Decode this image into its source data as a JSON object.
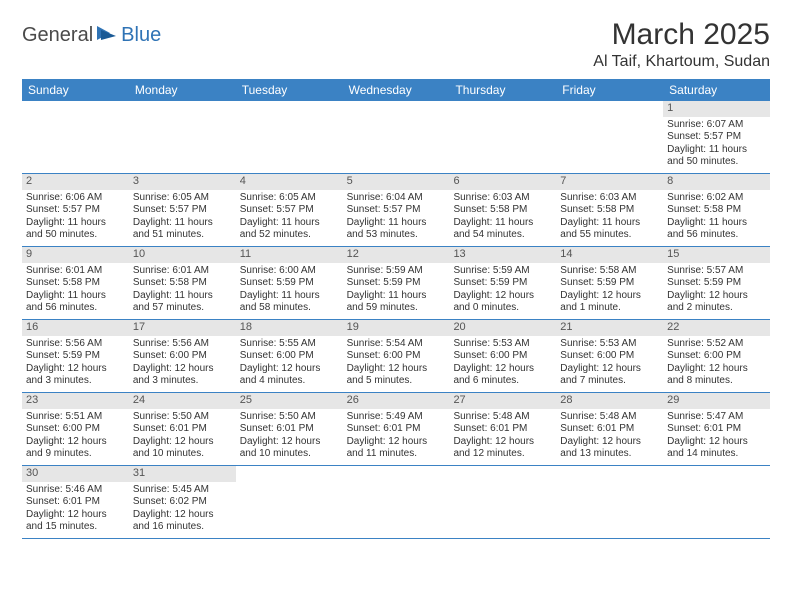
{
  "brand": {
    "part1": "General",
    "part2": "Blue"
  },
  "title": "March 2025",
  "location": "Al Taif, Khartoum, Sudan",
  "dayNames": [
    "Sunday",
    "Monday",
    "Tuesday",
    "Wednesday",
    "Thursday",
    "Friday",
    "Saturday"
  ],
  "colors": {
    "headerBlue": "#3b82c4",
    "cellHeaderGray": "#e6e6e6",
    "logoBlue": "#2f73b5",
    "logoGray": "#4a4a4a",
    "text": "#333333"
  },
  "weeks": [
    [
      null,
      null,
      null,
      null,
      null,
      null,
      {
        "d": "1",
        "sr": "6:07 AM",
        "ss": "5:57 PM",
        "dl": "11 hours and 50 minutes."
      }
    ],
    [
      {
        "d": "2",
        "sr": "6:06 AM",
        "ss": "5:57 PM",
        "dl": "11 hours and 50 minutes."
      },
      {
        "d": "3",
        "sr": "6:05 AM",
        "ss": "5:57 PM",
        "dl": "11 hours and 51 minutes."
      },
      {
        "d": "4",
        "sr": "6:05 AM",
        "ss": "5:57 PM",
        "dl": "11 hours and 52 minutes."
      },
      {
        "d": "5",
        "sr": "6:04 AM",
        "ss": "5:57 PM",
        "dl": "11 hours and 53 minutes."
      },
      {
        "d": "6",
        "sr": "6:03 AM",
        "ss": "5:58 PM",
        "dl": "11 hours and 54 minutes."
      },
      {
        "d": "7",
        "sr": "6:03 AM",
        "ss": "5:58 PM",
        "dl": "11 hours and 55 minutes."
      },
      {
        "d": "8",
        "sr": "6:02 AM",
        "ss": "5:58 PM",
        "dl": "11 hours and 56 minutes."
      }
    ],
    [
      {
        "d": "9",
        "sr": "6:01 AM",
        "ss": "5:58 PM",
        "dl": "11 hours and 56 minutes."
      },
      {
        "d": "10",
        "sr": "6:01 AM",
        "ss": "5:58 PM",
        "dl": "11 hours and 57 minutes."
      },
      {
        "d": "11",
        "sr": "6:00 AM",
        "ss": "5:59 PM",
        "dl": "11 hours and 58 minutes."
      },
      {
        "d": "12",
        "sr": "5:59 AM",
        "ss": "5:59 PM",
        "dl": "11 hours and 59 minutes."
      },
      {
        "d": "13",
        "sr": "5:59 AM",
        "ss": "5:59 PM",
        "dl": "12 hours and 0 minutes."
      },
      {
        "d": "14",
        "sr": "5:58 AM",
        "ss": "5:59 PM",
        "dl": "12 hours and 1 minute."
      },
      {
        "d": "15",
        "sr": "5:57 AM",
        "ss": "5:59 PM",
        "dl": "12 hours and 2 minutes."
      }
    ],
    [
      {
        "d": "16",
        "sr": "5:56 AM",
        "ss": "5:59 PM",
        "dl": "12 hours and 3 minutes."
      },
      {
        "d": "17",
        "sr": "5:56 AM",
        "ss": "6:00 PM",
        "dl": "12 hours and 3 minutes."
      },
      {
        "d": "18",
        "sr": "5:55 AM",
        "ss": "6:00 PM",
        "dl": "12 hours and 4 minutes."
      },
      {
        "d": "19",
        "sr": "5:54 AM",
        "ss": "6:00 PM",
        "dl": "12 hours and 5 minutes."
      },
      {
        "d": "20",
        "sr": "5:53 AM",
        "ss": "6:00 PM",
        "dl": "12 hours and 6 minutes."
      },
      {
        "d": "21",
        "sr": "5:53 AM",
        "ss": "6:00 PM",
        "dl": "12 hours and 7 minutes."
      },
      {
        "d": "22",
        "sr": "5:52 AM",
        "ss": "6:00 PM",
        "dl": "12 hours and 8 minutes."
      }
    ],
    [
      {
        "d": "23",
        "sr": "5:51 AM",
        "ss": "6:00 PM",
        "dl": "12 hours and 9 minutes."
      },
      {
        "d": "24",
        "sr": "5:50 AM",
        "ss": "6:01 PM",
        "dl": "12 hours and 10 minutes."
      },
      {
        "d": "25",
        "sr": "5:50 AM",
        "ss": "6:01 PM",
        "dl": "12 hours and 10 minutes."
      },
      {
        "d": "26",
        "sr": "5:49 AM",
        "ss": "6:01 PM",
        "dl": "12 hours and 11 minutes."
      },
      {
        "d": "27",
        "sr": "5:48 AM",
        "ss": "6:01 PM",
        "dl": "12 hours and 12 minutes."
      },
      {
        "d": "28",
        "sr": "5:48 AM",
        "ss": "6:01 PM",
        "dl": "12 hours and 13 minutes."
      },
      {
        "d": "29",
        "sr": "5:47 AM",
        "ss": "6:01 PM",
        "dl": "12 hours and 14 minutes."
      }
    ],
    [
      {
        "d": "30",
        "sr": "5:46 AM",
        "ss": "6:01 PM",
        "dl": "12 hours and 15 minutes."
      },
      {
        "d": "31",
        "sr": "5:45 AM",
        "ss": "6:02 PM",
        "dl": "12 hours and 16 minutes."
      },
      null,
      null,
      null,
      null,
      null
    ]
  ],
  "labels": {
    "sunrise": "Sunrise:",
    "sunset": "Sunset:",
    "daylight": "Daylight:"
  }
}
